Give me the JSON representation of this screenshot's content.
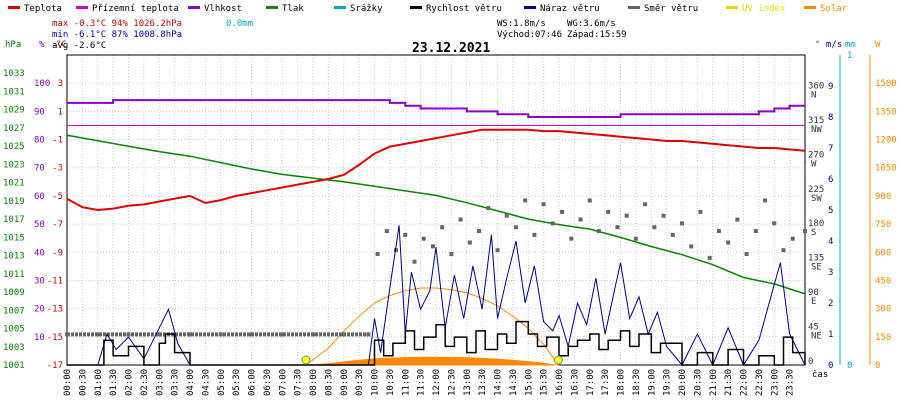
{
  "chart_data": {
    "type": "line",
    "date": "23.12.2021",
    "legend": [
      {
        "name": "Teplota",
        "color": "#e00000"
      },
      {
        "name": "Přízemní teplota",
        "color": "#cc00cc"
      },
      {
        "name": "Vlhkost",
        "color": "#8800cc"
      },
      {
        "name": "Tlak",
        "color": "#008800"
      },
      {
        "name": "Srážky",
        "color": "#00aacc"
      },
      {
        "name": "Rychlost větru",
        "color": "#000000"
      },
      {
        "name": "Náraz větru",
        "color": "#000088"
      },
      {
        "name": "Směr větru",
        "color": "#666666"
      },
      {
        "name": "UV index",
        "color": "#dddd00"
      },
      {
        "name": "Solar",
        "color": "#ff8800"
      }
    ],
    "stats": {
      "max": "max -0.3°C  94%  1026.2hPa",
      "max_rain": "0.0mm",
      "min": "min -6.1°C  87%  1008.8hPa",
      "avg": "avg -2.6°C",
      "ws": "WS:1.8m/s",
      "wg": "WG:3.6m/s",
      "sunrise": "Východ:07:46",
      "sunset": "Západ:15:59"
    },
    "axes": {
      "hpa_label": "hPa",
      "hpa_ticks": [
        "1033",
        "1031",
        "1029",
        "1027",
        "1025",
        "1023",
        "1021",
        "1019",
        "1017",
        "1015",
        "1013",
        "1011",
        "1009",
        "1007",
        "1005",
        "1003",
        "1001"
      ],
      "pct_label": "%",
      "pct_ticks": [
        "100",
        "90",
        "80",
        "70",
        "60",
        "50",
        "40",
        "30",
        "20",
        "10"
      ],
      "temp_label": "°C",
      "temp_ticks": [
        "3",
        "1",
        "-1",
        "-3",
        "-5",
        "-7",
        "-9",
        "-11",
        "-13",
        "-15",
        "-17"
      ],
      "dir_label": "°",
      "dir_ticks": [
        {
          "deg": "360",
          "name": "N"
        },
        {
          "deg": "315",
          "name": "NW"
        },
        {
          "deg": "270",
          "name": "W"
        },
        {
          "deg": "225",
          "name": "SW"
        },
        {
          "deg": "180",
          "name": "S"
        },
        {
          "deg": "135",
          "name": "SE"
        },
        {
          "deg": "90",
          "name": "E"
        },
        {
          "deg": "45",
          "name": "NE"
        },
        {
          "deg": "0",
          "name": ""
        }
      ],
      "ms_label": "m/s",
      "ms_ticks": [
        "9",
        "8",
        "7",
        "6",
        "5",
        "4",
        "3",
        "2",
        "1",
        "0"
      ],
      "mm_label": "mm",
      "mm_ticks": [
        "1",
        "0"
      ],
      "w_label": "W",
      "w_ticks": [
        "1500",
        "1350",
        "1200",
        "1050",
        "900",
        "750",
        "600",
        "450",
        "300",
        "150",
        "0"
      ],
      "time_label": "čas",
      "time_ticks": [
        "00:00",
        "00:30",
        "01:00",
        "01:30",
        "02:00",
        "02:30",
        "03:00",
        "03:30",
        "04:00",
        "04:30",
        "05:00",
        "05:30",
        "06:00",
        "06:30",
        "07:00",
        "07:30",
        "08:00",
        "08:30",
        "09:00",
        "09:30",
        "10:00",
        "10:30",
        "11:00",
        "11:30",
        "12:00",
        "12:30",
        "13:00",
        "13:30",
        "14:00",
        "14:30",
        "15:00",
        "15:30",
        "16:00",
        "16:30",
        "17:00",
        "17:30",
        "18:00",
        "18:30",
        "19:00",
        "19:30",
        "20:00",
        "20:30",
        "21:00",
        "21:30",
        "22:00",
        "22:30",
        "23:00",
        "23:30"
      ]
    },
    "series": [
      {
        "name": "Teplota",
        "unit": "°C",
        "x": [
          0,
          0.5,
          1,
          1.5,
          2,
          2.5,
          3,
          3.5,
          4,
          4.5,
          5,
          5.5,
          6,
          6.5,
          7,
          7.5,
          8,
          8.5,
          9,
          9.5,
          10,
          10.5,
          11,
          11.5,
          12,
          12.5,
          13,
          13.5,
          14,
          14.5,
          15,
          15.5,
          16,
          16.5,
          17,
          17.5,
          18,
          18.5,
          19,
          19.5,
          20,
          20.5,
          21,
          21.5,
          22,
          22.5,
          23,
          23.5,
          24
        ],
        "values": [
          -5.2,
          -5.8,
          -6.0,
          -5.9,
          -5.7,
          -5.6,
          -5.4,
          -5.2,
          -5.0,
          -5.5,
          -5.3,
          -5.0,
          -4.8,
          -4.6,
          -4.4,
          -4.2,
          -4.0,
          -3.8,
          -3.5,
          -2.8,
          -2.0,
          -1.5,
          -1.3,
          -1.1,
          -0.9,
          -0.7,
          -0.5,
          -0.3,
          -0.3,
          -0.3,
          -0.3,
          -0.4,
          -0.4,
          -0.5,
          -0.6,
          -0.7,
          -0.8,
          -0.9,
          -1.0,
          -1.1,
          -1.1,
          -1.2,
          -1.3,
          -1.4,
          -1.5,
          -1.6,
          -1.6,
          -1.7,
          -1.8
        ]
      },
      {
        "name": "Přízemní teplota",
        "unit": "°C",
        "x": [
          0,
          24
        ],
        "values": [
          0,
          0
        ]
      },
      {
        "name": "Vlhkost",
        "unit": "%",
        "x": [
          0,
          1,
          1.5,
          2,
          3,
          4,
          5,
          6,
          7,
          8,
          9,
          10,
          10.5,
          11,
          11.5,
          12,
          13,
          14,
          15,
          15.5,
          16,
          17,
          18,
          19,
          20,
          21,
          22,
          22.5,
          23,
          23.5,
          24
        ],
        "values": [
          93,
          93,
          94,
          94,
          94,
          94,
          94,
          94,
          94,
          94,
          94,
          94,
          93,
          92,
          91,
          91,
          90,
          89,
          88,
          88,
          88,
          88,
          89,
          89,
          89,
          89,
          89,
          90,
          91,
          92,
          92
        ]
      },
      {
        "name": "Tlak",
        "unit": "hPa",
        "x": [
          0,
          1,
          2,
          3,
          4,
          5,
          6,
          7,
          8,
          9,
          10,
          11,
          12,
          13,
          14,
          15,
          16,
          17,
          18,
          19,
          20,
          21,
          22,
          23,
          24
        ],
        "values": [
          1026.2,
          1025.6,
          1025.0,
          1024.4,
          1023.9,
          1023.2,
          1022.5,
          1021.9,
          1021.5,
          1021.1,
          1020.6,
          1020.1,
          1019.6,
          1018.8,
          1017.9,
          1017.0,
          1016.4,
          1015.9,
          1015.0,
          1014.0,
          1013.1,
          1012.0,
          1010.6,
          1009.9,
          1008.8
        ]
      },
      {
        "name": "Srážky",
        "unit": "mm",
        "x": [
          0,
          24
        ],
        "values": [
          0,
          0
        ]
      },
      {
        "name": "Rychlost větru",
        "unit": "m/s",
        "x": [
          0,
          1,
          1.2,
          1.5,
          2,
          2.5,
          3,
          3.2,
          3.5,
          4,
          5,
          6,
          7,
          8,
          9,
          9.8,
          10,
          10.3,
          10.6,
          11,
          11.3,
          11.6,
          12,
          12.3,
          12.6,
          13,
          13.3,
          13.6,
          14,
          14.3,
          14.6,
          15,
          15.3,
          15.6,
          16,
          16.3,
          16.6,
          17,
          17.3,
          17.6,
          18,
          18.3,
          18.6,
          19,
          19.3,
          20,
          20.5,
          21,
          21.5,
          22,
          22.5,
          23,
          23.3,
          23.6,
          24
        ],
        "values": [
          0,
          0,
          0.8,
          0.3,
          0.6,
          0,
          0.7,
          1.0,
          0.4,
          0,
          0,
          0,
          0,
          0,
          0,
          0,
          0.8,
          0.3,
          0.7,
          1.1,
          0.5,
          0.9,
          1.3,
          0.6,
          0.9,
          0.4,
          1.1,
          0.5,
          1.0,
          0.7,
          1.4,
          1.0,
          0.6,
          0.9,
          0.3,
          0.6,
          0.8,
          1.0,
          0.5,
          0.8,
          1.1,
          0.6,
          1.0,
          0.4,
          0.7,
          0,
          0.4,
          0,
          0.5,
          0,
          0.3,
          0,
          0.9,
          0.4,
          0
        ]
      },
      {
        "name": "Náraz větru",
        "unit": "m/s",
        "x": [
          0,
          1,
          1.3,
          1.6,
          2,
          2.5,
          3,
          3.3,
          3.6,
          4,
          5,
          6,
          7,
          8,
          9,
          9.8,
          10,
          10.2,
          10.5,
          10.8,
          11.0,
          11.2,
          11.5,
          11.8,
          12.0,
          12.3,
          12.6,
          12.9,
          13.2,
          13.5,
          13.8,
          14.0,
          14.3,
          14.6,
          14.9,
          15.2,
          15.5,
          15.8,
          16.0,
          16.3,
          16.6,
          16.9,
          17.2,
          17.5,
          17.8,
          18.0,
          18.3,
          18.6,
          18.9,
          19.2,
          19.5,
          20.0,
          20.5,
          21.0,
          21.5,
          22.0,
          22.5,
          23.0,
          23.2,
          23.5,
          24
        ],
        "values": [
          0,
          0,
          1.0,
          0.5,
          0.9,
          0.2,
          1.2,
          1.8,
          0.7,
          0,
          0,
          0,
          0,
          0,
          0,
          0,
          1.5,
          0.4,
          2.5,
          4.5,
          1.0,
          3.0,
          1.8,
          2.4,
          3.8,
          1.2,
          2.9,
          1.5,
          3.2,
          1.8,
          4.2,
          1.5,
          2.8,
          4.0,
          2.0,
          3.2,
          1.4,
          1.1,
          1.6,
          0.6,
          2.0,
          1.3,
          2.8,
          1.0,
          2.4,
          3.3,
          1.5,
          2.2,
          1.0,
          1.7,
          0.6,
          0,
          1.0,
          0,
          1.2,
          0,
          0.8,
          2.6,
          3.3,
          1.0,
          0
        ]
      },
      {
        "name": "Směr větru",
        "unit": "°",
        "x": [
          0,
          1,
          2,
          3,
          4,
          5,
          6,
          7,
          8,
          9,
          9.8,
          10.1,
          10.4,
          10.7,
          11.0,
          11.3,
          11.6,
          11.9,
          12.2,
          12.5,
          12.8,
          13.1,
          13.4,
          13.7,
          14.0,
          14.3,
          14.6,
          14.9,
          15.2,
          15.5,
          15.8,
          16.1,
          16.4,
          16.7,
          17.0,
          17.3,
          17.6,
          17.9,
          18.2,
          18.5,
          18.8,
          19.1,
          19.4,
          19.7,
          20.0,
          20.3,
          20.6,
          20.9,
          21.2,
          21.5,
          21.8,
          22.1,
          22.4,
          22.7,
          23.0,
          23.3,
          23.6,
          24
        ],
        "values": [
          40,
          40,
          40,
          40,
          40,
          40,
          40,
          40,
          40,
          40,
          40,
          145,
          175,
          150,
          170,
          135,
          165,
          155,
          180,
          145,
          190,
          160,
          175,
          205,
          150,
          195,
          180,
          215,
          170,
          210,
          185,
          200,
          165,
          190,
          215,
          175,
          200,
          180,
          195,
          165,
          210,
          180,
          195,
          170,
          185,
          155,
          200,
          140,
          175,
          160,
          190,
          145,
          175,
          215,
          185,
          150,
          165,
          175
        ]
      },
      {
        "name": "UV index",
        "unit": "",
        "x": [
          0,
          24
        ],
        "values": [
          0,
          0
        ]
      },
      {
        "name": "Solar",
        "unit": "W",
        "x": [
          7.77,
          8.5,
          9,
          9.5,
          10,
          10.5,
          11,
          11.5,
          12,
          12.5,
          13,
          13.5,
          14,
          14.5,
          15,
          15.5,
          15.98
        ],
        "values": [
          0,
          90,
          180,
          260,
          330,
          370,
          395,
          410,
          410,
          400,
          385,
          355,
          315,
          260,
          195,
          110,
          0
        ]
      }
    ],
    "sun": {
      "sunrise_hour": 7.77,
      "sunset_hour": 15.98
    },
    "grid": true
  }
}
